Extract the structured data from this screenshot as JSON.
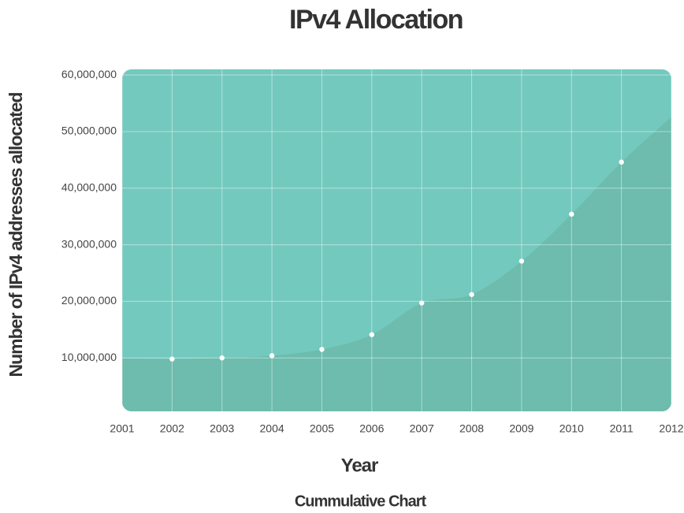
{
  "chart_data": {
    "type": "area",
    "title": "IPv4 Allocation",
    "xlabel": "Year",
    "ylabel": "Number of  IPv4 addresses allocated",
    "footer": "Cummulative Chart",
    "x": [
      2001,
      2002,
      2003,
      2004,
      2005,
      2006,
      2007,
      2008,
      2009,
      2010,
      2011,
      2012
    ],
    "values": [
      9900000,
      9800000,
      10000000,
      10400000,
      11500000,
      14100000,
      19700000,
      21200000,
      27100000,
      35400000,
      44600000,
      52600000
    ],
    "xlim": [
      2001,
      2012
    ],
    "xticks": [
      2001,
      2002,
      2003,
      2004,
      2005,
      2006,
      2007,
      2008,
      2009,
      2010,
      2011,
      2012
    ],
    "ylim": [
      0,
      61000000
    ],
    "yticks": [
      {
        "value": 10000000,
        "label": "10,000,000"
      },
      {
        "value": 20000000,
        "label": "20,000,000"
      },
      {
        "value": 30000000,
        "label": "30,000,000"
      },
      {
        "value": 40000000,
        "label": "40,000,000"
      },
      {
        "value": 50000000,
        "label": "50,000,000"
      },
      {
        "value": 60000000,
        "label": "60,000,000"
      }
    ],
    "background_color": "#74c9be",
    "color": "#6dbcad",
    "marker_color": "#ffffff",
    "grid": true
  }
}
